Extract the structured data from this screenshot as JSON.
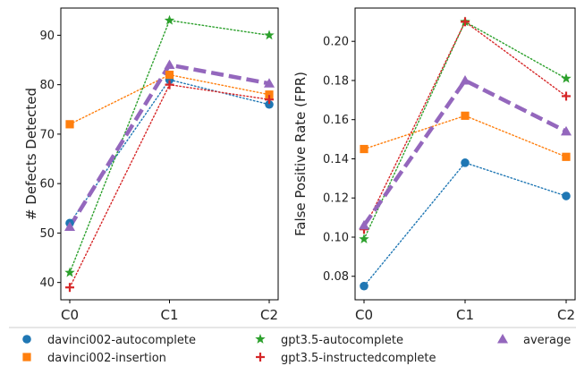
{
  "chart_data": [
    {
      "type": "line",
      "ylabel": "# Defects Detected",
      "xlabel": "",
      "categories": [
        "C0",
        "C1",
        "C2"
      ],
      "ylim": [
        36.5,
        95.5
      ],
      "yticks": [
        40,
        50,
        60,
        70,
        80,
        90
      ],
      "series": [
        {
          "name": "davinci002-autocomplete",
          "values": [
            52,
            81,
            76
          ]
        },
        {
          "name": "davinci002-insertion",
          "values": [
            72,
            82,
            78
          ]
        },
        {
          "name": "gpt3.5-autocomplete",
          "values": [
            42,
            93,
            90
          ]
        },
        {
          "name": "gpt3.5-instructedcomplete",
          "values": [
            39,
            80,
            77
          ]
        },
        {
          "name": "average",
          "values": [
            51.25,
            84,
            80.25
          ]
        }
      ]
    },
    {
      "type": "line",
      "ylabel": "False Positive Rate (FPR)",
      "xlabel": "",
      "categories": [
        "C0",
        "C1",
        "C2"
      ],
      "ylim": [
        0.068,
        0.217
      ],
      "yticks": [
        "0.08",
        "0.10",
        "0.12",
        "0.14",
        "0.16",
        "0.18",
        "0.20"
      ],
      "series": [
        {
          "name": "davinci002-autocomplete",
          "values": [
            0.075,
            0.138,
            0.121
          ]
        },
        {
          "name": "davinci002-insertion",
          "values": [
            0.145,
            0.162,
            0.141
          ]
        },
        {
          "name": "gpt3.5-autocomplete",
          "values": [
            0.099,
            0.21,
            0.181
          ]
        },
        {
          "name": "gpt3.5-instructedcomplete",
          "values": [
            0.104,
            0.21,
            0.172
          ]
        },
        {
          "name": "average",
          "values": [
            0.106,
            0.18,
            0.154
          ]
        }
      ]
    }
  ],
  "style": {
    "colors": {
      "davinci002-autocomplete": "#1f77b4",
      "davinci002-insertion": "#ff7f0e",
      "gpt3.5-autocomplete": "#2ca02c",
      "gpt3.5-instructedcomplete": "#d62728",
      "average": "#9467bd"
    },
    "markers": {
      "davinci002-autocomplete": "circle",
      "davinci002-insertion": "square",
      "gpt3.5-autocomplete": "star",
      "gpt3.5-instructedcomplete": "plus",
      "average": "triangle"
    }
  },
  "legend": {
    "placement": "bottom",
    "entries": [
      "davinci002-autocomplete",
      "davinci002-insertion",
      "gpt3.5-autocomplete",
      "gpt3.5-instructedcomplete",
      "average"
    ]
  }
}
